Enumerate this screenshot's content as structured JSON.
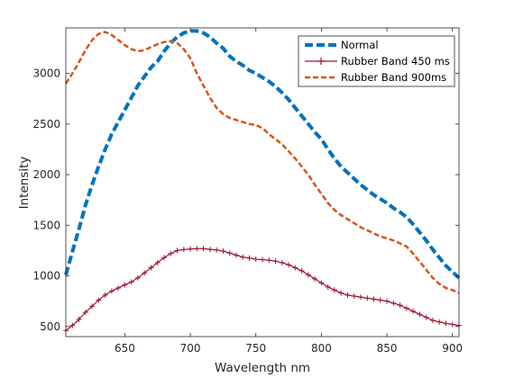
{
  "chart_data": {
    "type": "line",
    "title": "",
    "xlabel": "Wavelength nm",
    "ylabel": "Intensity",
    "xlim": [
      605,
      905
    ],
    "ylim": [
      400,
      3450
    ],
    "xticks": [
      650,
      700,
      750,
      800,
      850,
      900
    ],
    "yticks": [
      500,
      1000,
      1500,
      2000,
      2500,
      3000
    ],
    "xtick_labels": [
      "650",
      "700",
      "750",
      "800",
      "850",
      "900"
    ],
    "ytick_labels": [
      "500",
      "1000",
      "1500",
      "2000",
      "2500",
      "3000"
    ],
    "grid": false,
    "legend_position": "top-right",
    "series": [
      {
        "name": "Normal",
        "color": "#0072BD",
        "style": "dash-thick",
        "points": [
          [
            605,
            1010
          ],
          [
            610,
            1240
          ],
          [
            615,
            1460
          ],
          [
            620,
            1700
          ],
          [
            625,
            1900
          ],
          [
            630,
            2080
          ],
          [
            635,
            2250
          ],
          [
            640,
            2400
          ],
          [
            645,
            2520
          ],
          [
            650,
            2640
          ],
          [
            655,
            2760
          ],
          [
            660,
            2880
          ],
          [
            665,
            2970
          ],
          [
            670,
            3060
          ],
          [
            675,
            3120
          ],
          [
            680,
            3220
          ],
          [
            685,
            3300
          ],
          [
            690,
            3360
          ],
          [
            695,
            3400
          ],
          [
            700,
            3420
          ],
          [
            705,
            3420
          ],
          [
            710,
            3400
          ],
          [
            715,
            3360
          ],
          [
            720,
            3300
          ],
          [
            725,
            3250
          ],
          [
            730,
            3170
          ],
          [
            735,
            3120
          ],
          [
            740,
            3080
          ],
          [
            745,
            3030
          ],
          [
            750,
            3000
          ],
          [
            755,
            2960
          ],
          [
            760,
            2920
          ],
          [
            765,
            2870
          ],
          [
            770,
            2810
          ],
          [
            775,
            2740
          ],
          [
            780,
            2660
          ],
          [
            785,
            2580
          ],
          [
            790,
            2500
          ],
          [
            795,
            2420
          ],
          [
            800,
            2350
          ],
          [
            805,
            2250
          ],
          [
            810,
            2160
          ],
          [
            815,
            2080
          ],
          [
            820,
            2020
          ],
          [
            825,
            1960
          ],
          [
            830,
            1900
          ],
          [
            835,
            1850
          ],
          [
            840,
            1800
          ],
          [
            845,
            1760
          ],
          [
            850,
            1720
          ],
          [
            855,
            1670
          ],
          [
            860,
            1630
          ],
          [
            865,
            1580
          ],
          [
            870,
            1510
          ],
          [
            875,
            1430
          ],
          [
            880,
            1350
          ],
          [
            885,
            1260
          ],
          [
            890,
            1180
          ],
          [
            895,
            1100
          ],
          [
            900,
            1040
          ],
          [
            905,
            980
          ]
        ]
      },
      {
        "name": "Rubber Band 450 ms",
        "color": "#A2142F",
        "style": "solid-plus",
        "points": [
          [
            605,
            460
          ],
          [
            610,
            510
          ],
          [
            615,
            570
          ],
          [
            620,
            640
          ],
          [
            625,
            700
          ],
          [
            630,
            760
          ],
          [
            635,
            810
          ],
          [
            640,
            850
          ],
          [
            645,
            880
          ],
          [
            650,
            910
          ],
          [
            655,
            940
          ],
          [
            660,
            980
          ],
          [
            665,
            1030
          ],
          [
            670,
            1080
          ],
          [
            675,
            1130
          ],
          [
            680,
            1180
          ],
          [
            685,
            1220
          ],
          [
            690,
            1250
          ],
          [
            695,
            1260
          ],
          [
            700,
            1265
          ],
          [
            705,
            1270
          ],
          [
            710,
            1270
          ],
          [
            715,
            1262
          ],
          [
            720,
            1255
          ],
          [
            725,
            1245
          ],
          [
            730,
            1225
          ],
          [
            735,
            1205
          ],
          [
            740,
            1185
          ],
          [
            745,
            1175
          ],
          [
            750,
            1165
          ],
          [
            755,
            1160
          ],
          [
            760,
            1155
          ],
          [
            765,
            1145
          ],
          [
            770,
            1130
          ],
          [
            775,
            1110
          ],
          [
            780,
            1080
          ],
          [
            785,
            1050
          ],
          [
            790,
            1010
          ],
          [
            795,
            970
          ],
          [
            800,
            930
          ],
          [
            805,
            890
          ],
          [
            810,
            860
          ],
          [
            815,
            830
          ],
          [
            820,
            810
          ],
          [
            825,
            800
          ],
          [
            830,
            790
          ],
          [
            835,
            780
          ],
          [
            840,
            770
          ],
          [
            845,
            760
          ],
          [
            850,
            750
          ],
          [
            855,
            730
          ],
          [
            860,
            710
          ],
          [
            865,
            680
          ],
          [
            870,
            650
          ],
          [
            875,
            620
          ],
          [
            880,
            590
          ],
          [
            885,
            560
          ],
          [
            890,
            545
          ],
          [
            895,
            530
          ],
          [
            900,
            520
          ],
          [
            905,
            510
          ]
        ]
      },
      {
        "name": "Rubber Band 900ms",
        "color": "#D95319",
        "style": "dash",
        "points": [
          [
            605,
            2900
          ],
          [
            610,
            3000
          ],
          [
            615,
            3110
          ],
          [
            620,
            3230
          ],
          [
            625,
            3330
          ],
          [
            630,
            3390
          ],
          [
            635,
            3410
          ],
          [
            640,
            3380
          ],
          [
            645,
            3330
          ],
          [
            650,
            3280
          ],
          [
            655,
            3240
          ],
          [
            660,
            3220
          ],
          [
            665,
            3230
          ],
          [
            670,
            3260
          ],
          [
            675,
            3290
          ],
          [
            680,
            3310
          ],
          [
            685,
            3320
          ],
          [
            690,
            3300
          ],
          [
            695,
            3240
          ],
          [
            700,
            3150
          ],
          [
            705,
            3000
          ],
          [
            710,
            2880
          ],
          [
            715,
            2760
          ],
          [
            720,
            2660
          ],
          [
            725,
            2600
          ],
          [
            730,
            2560
          ],
          [
            735,
            2540
          ],
          [
            740,
            2520
          ],
          [
            745,
            2500
          ],
          [
            750,
            2490
          ],
          [
            755,
            2460
          ],
          [
            760,
            2400
          ],
          [
            765,
            2350
          ],
          [
            770,
            2300
          ],
          [
            775,
            2230
          ],
          [
            780,
            2160
          ],
          [
            785,
            2080
          ],
          [
            790,
            2000
          ],
          [
            795,
            1900
          ],
          [
            800,
            1810
          ],
          [
            805,
            1720
          ],
          [
            810,
            1650
          ],
          [
            815,
            1600
          ],
          [
            820,
            1560
          ],
          [
            825,
            1520
          ],
          [
            830,
            1480
          ],
          [
            835,
            1450
          ],
          [
            840,
            1420
          ],
          [
            845,
            1390
          ],
          [
            850,
            1370
          ],
          [
            855,
            1350
          ],
          [
            860,
            1320
          ],
          [
            865,
            1290
          ],
          [
            870,
            1220
          ],
          [
            875,
            1140
          ],
          [
            880,
            1060
          ],
          [
            885,
            980
          ],
          [
            890,
            920
          ],
          [
            895,
            880
          ],
          [
            900,
            860
          ],
          [
            905,
            830
          ]
        ]
      }
    ]
  }
}
